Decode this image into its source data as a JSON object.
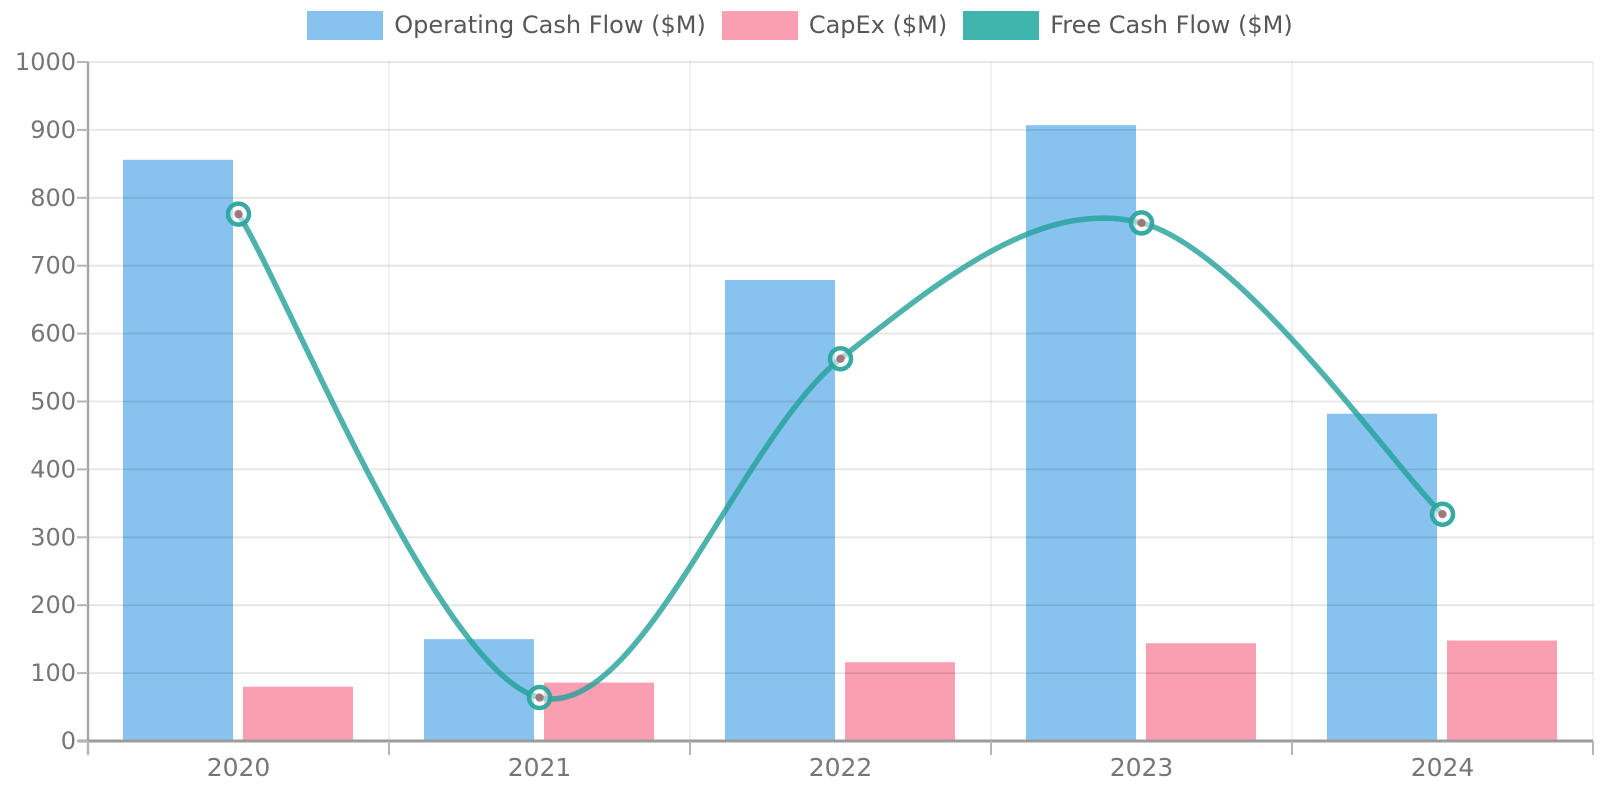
{
  "legend": {
    "position": "top",
    "items": [
      "Operating Cash Flow ($M)",
      "CapEx ($M)",
      "Free Cash Flow ($M)"
    ]
  },
  "chart_data": {
    "type": "combo",
    "title": "",
    "xlabel": "",
    "ylabel": "",
    "categories": [
      "2020",
      "2021",
      "2022",
      "2023",
      "2024"
    ],
    "series": [
      {
        "name": "Operating Cash Flow ($M)",
        "type": "bar",
        "color": "#88c3ef",
        "values": [
          856,
          150,
          679,
          907,
          482
        ]
      },
      {
        "name": "CapEx ($M)",
        "type": "bar",
        "color": "#f99fb1",
        "values": [
          80,
          86,
          116,
          144,
          148
        ]
      },
      {
        "name": "Free Cash Flow ($M)",
        "type": "line",
        "color": "#3fb5ad",
        "line_color": "rgba(34,160,153,0.8)",
        "marker_ring_color": "rgba(43,165,158,0.95)",
        "marker_inner_color": "rgba(150,98,98,0.8)",
        "smooth": true,
        "values": [
          776,
          64,
          563,
          763,
          334
        ]
      }
    ],
    "ylim": [
      0,
      1000
    ],
    "y_ticks": [
      0,
      100,
      200,
      300,
      400,
      500,
      600,
      700,
      800,
      900,
      1000
    ],
    "grid": true,
    "legend_position": "top",
    "axis_text_color": "#767676",
    "grid_color": "rgba(0,0,0,0.10)",
    "axis_line_color": "#9b9b9b"
  }
}
